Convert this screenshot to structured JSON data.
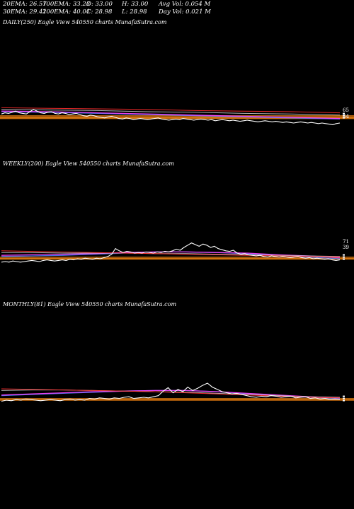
{
  "header": {
    "row1": [
      "20EMA: 26.57",
      "100EMA: 33.23",
      "O: 33.00",
      "H: 33.00",
      "Avg Vol: 0.054  M"
    ],
    "row2": [
      "30EMA: 29.41",
      "200EMA: 40.01",
      "C: 28.98",
      "L: 28.98",
      "Day Vol: 0.021  M"
    ]
  },
  "colors": {
    "background": "#000000",
    "price": "#ffffff",
    "ema20": "#4a7cff",
    "ema30": "#ff40ff",
    "ema100": "#c8c8c8",
    "ema200": "#ff2b2b",
    "band": "#e07a10"
  },
  "chart_data": [
    {
      "type": "line",
      "title": "DAILY(250) Eagle  View  540550  charts MunafaSutra.com",
      "right_labels": [
        "65",
        "34"
      ],
      "series": [
        {
          "role": "price",
          "values": [
            36,
            38,
            37,
            39,
            41,
            38,
            37,
            36,
            40,
            44,
            41,
            38,
            37,
            39,
            40,
            37,
            36,
            38,
            37,
            35,
            36,
            37,
            35,
            33,
            32,
            34,
            33,
            31,
            30,
            29,
            31,
            32,
            30,
            28,
            27,
            29,
            28,
            26,
            27,
            28,
            27,
            26,
            27,
            28,
            29,
            27,
            26,
            25,
            26,
            27,
            26,
            28,
            27,
            26,
            25,
            26,
            27,
            26,
            25,
            26,
            24,
            25,
            26,
            25,
            24,
            25,
            24,
            23,
            24,
            25,
            24,
            23,
            22,
            23,
            24,
            23,
            22,
            23,
            22,
            21,
            22,
            21,
            20,
            21,
            22,
            21,
            20,
            21,
            20,
            19,
            20,
            19,
            18,
            17,
            19,
            20
          ]
        },
        {
          "role": "ema",
          "values": [
            40,
            39,
            37,
            35,
            33,
            31,
            29,
            27
          ]
        },
        {
          "role": "ema",
          "values": [
            41,
            40,
            38,
            36,
            34,
            32,
            30,
            28
          ]
        },
        {
          "role": "ema",
          "values": [
            44,
            43,
            42,
            40,
            39,
            37,
            36,
            34
          ]
        },
        {
          "role": "ema",
          "values": [
            47,
            46,
            45,
            44,
            42,
            41,
            40,
            38
          ]
        }
      ],
      "bands": [
        33,
        31,
        29.5,
        28
      ],
      "ylim": [
        0,
        100
      ]
    },
    {
      "type": "line",
      "title": "WEEKLY(200) Eagle  View  540550  charts MunafaSutra.com",
      "right_labels": [
        "71",
        "39"
      ],
      "series": [
        {
          "role": "price",
          "values": [
            24,
            25,
            24,
            26,
            25,
            24,
            25,
            26,
            27,
            26,
            25,
            27,
            28,
            27,
            26,
            27,
            28,
            27,
            29,
            28,
            30,
            29,
            31,
            30,
            29,
            31,
            30,
            32,
            34,
            38,
            48,
            44,
            41,
            43,
            42,
            40,
            41,
            40,
            42,
            41,
            40,
            42,
            41,
            43,
            42,
            44,
            47,
            45,
            50,
            54,
            58,
            55,
            52,
            56,
            54,
            50,
            52,
            48,
            46,
            44,
            43,
            45,
            40,
            38,
            39,
            37,
            36,
            35,
            36,
            34,
            33,
            35,
            34,
            33,
            34,
            33,
            32,
            33,
            34,
            32,
            31,
            32,
            30,
            31,
            30,
            29,
            30,
            28,
            27,
            28
          ]
        },
        {
          "role": "ema",
          "values": [
            34,
            35,
            36,
            38,
            40,
            42,
            42,
            41,
            39,
            36,
            33,
            30
          ]
        },
        {
          "role": "ema",
          "values": [
            36,
            37,
            38,
            39,
            41,
            42,
            42,
            41,
            40,
            37,
            35,
            32
          ]
        },
        {
          "role": "ema",
          "values": [
            41,
            41,
            40,
            40,
            40,
            39,
            39,
            38,
            37,
            36,
            35,
            34
          ]
        },
        {
          "role": "ema",
          "values": [
            44,
            43,
            42,
            41,
            40,
            39,
            38,
            37,
            36,
            35,
            34,
            33
          ]
        }
      ],
      "bands": [
        33,
        31,
        29.5
      ],
      "ylim": [
        0,
        100
      ]
    },
    {
      "type": "line",
      "title": "MONTHLY(81) Eagle  View  540550  charts MunafaSutra.com",
      "right_labels": [],
      "series": [
        {
          "role": "price",
          "values": [
            28,
            30,
            29,
            31,
            30,
            32,
            31,
            30,
            29,
            30,
            31,
            30,
            29,
            31,
            32,
            30,
            31,
            30,
            33,
            32,
            34,
            33,
            32,
            34,
            33,
            35,
            36,
            33,
            34,
            35,
            34,
            36,
            38,
            46,
            52,
            43,
            49,
            45,
            53,
            47,
            51,
            56,
            60,
            53,
            49,
            45,
            43,
            41,
            42,
            40,
            38,
            36,
            35,
            37,
            36,
            38,
            37,
            35,
            36,
            37,
            34,
            35,
            36,
            33,
            34,
            32,
            33,
            31,
            32,
            31
          ]
        },
        {
          "role": "ema",
          "values": [
            38,
            40,
            42,
            44,
            46,
            47,
            47,
            45,
            41,
            38,
            35,
            33
          ]
        },
        {
          "role": "ema",
          "values": [
            39,
            41,
            43,
            45,
            46,
            47,
            47,
            45,
            42,
            39,
            36,
            34
          ]
        },
        {
          "role": "ema",
          "values": [
            47,
            48,
            48,
            47,
            46,
            45,
            44,
            42,
            40,
            38,
            36,
            35
          ]
        },
        {
          "role": "ema",
          "values": [
            50,
            49,
            48,
            47,
            46,
            45,
            43,
            41,
            39,
            37,
            35,
            34
          ]
        }
      ],
      "bands": [
        33,
        31,
        30
      ],
      "ylim": [
        0,
        100
      ]
    }
  ]
}
